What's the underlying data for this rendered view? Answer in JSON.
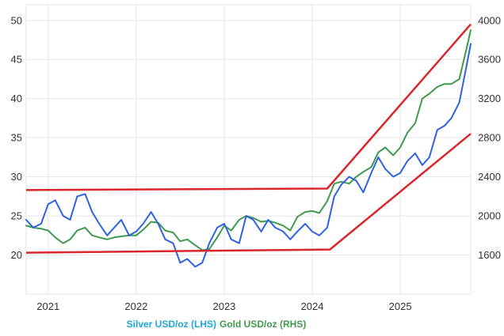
{
  "chart_data": {
    "type": "line",
    "title": "",
    "xlabel": "",
    "x_ticks": [
      "2021",
      "2022",
      "2023",
      "2024",
      "2025"
    ],
    "x_range": [
      2020.75,
      2025.8
    ],
    "left_axis": {
      "ylim": [
        15,
        52
      ],
      "ticks": [
        "20",
        "25",
        "30",
        "35",
        "40",
        "45",
        "50"
      ]
    },
    "right_axis": {
      "ylim": [
        1200,
        4160
      ],
      "ticks": [
        "1600",
        "2000",
        "2400",
        "2800",
        "3200",
        "3600",
        "4000"
      ]
    },
    "grid": true,
    "legend_position": "bottom-center",
    "colors": {
      "silver": "#2f62e0",
      "gold": "#3f9a4e",
      "trend": "#d9262b",
      "legend_silver": "#1fa6d6",
      "legend_gold": "#3f9a4e",
      "grid": "#e5e5e5"
    },
    "series": [
      {
        "name": "Silver USD/oz (LHS)",
        "axis": "left",
        "x": [
          2020.75,
          2020.83,
          2020.92,
          2021.0,
          2021.08,
          2021.17,
          2021.25,
          2021.33,
          2021.42,
          2021.5,
          2021.58,
          2021.67,
          2021.75,
          2021.83,
          2021.92,
          2022.0,
          2022.08,
          2022.17,
          2022.25,
          2022.33,
          2022.42,
          2022.5,
          2022.58,
          2022.67,
          2022.75,
          2022.83,
          2022.92,
          2023.0,
          2023.08,
          2023.17,
          2023.25,
          2023.33,
          2023.42,
          2023.5,
          2023.58,
          2023.67,
          2023.75,
          2023.83,
          2023.92,
          2024.0,
          2024.08,
          2024.17,
          2024.25,
          2024.33,
          2024.42,
          2024.5,
          2024.58,
          2024.67,
          2024.75,
          2024.83,
          2024.92,
          2025.0,
          2025.08,
          2025.17,
          2025.25,
          2025.33,
          2025.42,
          2025.5,
          2025.58,
          2025.67,
          2025.75,
          2025.8
        ],
        "values": [
          24.5,
          23.5,
          24.0,
          26.5,
          27.0,
          25.0,
          24.5,
          27.5,
          27.8,
          25.5,
          24.0,
          22.5,
          23.5,
          24.5,
          22.5,
          23.0,
          24.0,
          25.5,
          24.0,
          22.0,
          21.5,
          19.0,
          19.5,
          18.5,
          19.0,
          21.5,
          23.5,
          24.0,
          22.0,
          21.5,
          25.0,
          24.5,
          23.0,
          24.5,
          23.5,
          23.0,
          22.0,
          23.0,
          24.0,
          23.0,
          22.5,
          23.5,
          27.5,
          29.0,
          30.0,
          29.5,
          28.0,
          30.5,
          32.5,
          31.0,
          30.0,
          30.5,
          32.0,
          33.0,
          31.5,
          32.5,
          36.0,
          36.5,
          37.5,
          39.5,
          44.0,
          47.0
        ]
      },
      {
        "name": "Gold USD/oz (RHS)",
        "axis": "right",
        "x": [
          2020.75,
          2020.83,
          2020.92,
          2021.0,
          2021.08,
          2021.17,
          2021.25,
          2021.33,
          2021.42,
          2021.5,
          2021.58,
          2021.67,
          2021.75,
          2021.83,
          2021.92,
          2022.0,
          2022.08,
          2022.17,
          2022.25,
          2022.33,
          2022.42,
          2022.5,
          2022.58,
          2022.67,
          2022.75,
          2022.83,
          2022.92,
          2023.0,
          2023.08,
          2023.17,
          2023.25,
          2023.33,
          2023.42,
          2023.5,
          2023.58,
          2023.67,
          2023.75,
          2023.83,
          2023.92,
          2024.0,
          2024.08,
          2024.17,
          2024.25,
          2024.33,
          2024.42,
          2024.5,
          2024.58,
          2024.67,
          2024.75,
          2024.83,
          2024.92,
          2025.0,
          2025.08,
          2025.17,
          2025.25,
          2025.33,
          2025.42,
          2025.5,
          2025.58,
          2025.67,
          2025.75,
          2025.8
        ],
        "values": [
          1900,
          1880,
          1870,
          1850,
          1780,
          1720,
          1760,
          1850,
          1880,
          1800,
          1780,
          1760,
          1780,
          1790,
          1800,
          1800,
          1860,
          1940,
          1930,
          1850,
          1830,
          1740,
          1760,
          1700,
          1650,
          1660,
          1780,
          1900,
          1850,
          1960,
          2000,
          1980,
          1940,
          1950,
          1930,
          1900,
          1850,
          1990,
          2040,
          2050,
          2030,
          2150,
          2330,
          2350,
          2330,
          2400,
          2450,
          2500,
          2650,
          2700,
          2620,
          2700,
          2850,
          2950,
          3200,
          3250,
          3320,
          3350,
          3350,
          3400,
          3700,
          3900
        ]
      }
    ],
    "trend_lines": [
      {
        "axis": "left",
        "x": [
          2020.75,
          2024.17,
          2025.8
        ],
        "values": [
          28.3,
          28.5,
          49.5
        ]
      },
      {
        "axis": "left",
        "x": [
          2020.75,
          2024.2,
          2025.8
        ],
        "values": [
          20.3,
          20.7,
          35.5
        ]
      }
    ]
  }
}
